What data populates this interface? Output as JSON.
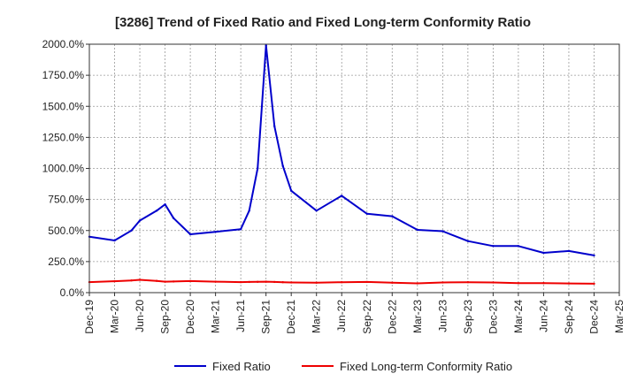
{
  "chart_data": {
    "type": "line",
    "title": "[3286]  Trend of Fixed Ratio and Fixed Long-term Conformity Ratio",
    "xlabel": "",
    "ylabel": "",
    "ylim": [
      0,
      2000
    ],
    "y_ticks": [
      0,
      250,
      500,
      750,
      1000,
      1250,
      1500,
      1750,
      2000
    ],
    "y_tick_labels": [
      "0.0%",
      "250.0%",
      "500.0%",
      "750.0%",
      "1000.0%",
      "1250.0%",
      "1500.0%",
      "1750.0%",
      "2000.0%"
    ],
    "x_tick_labels": [
      "Dec-19",
      "Mar-20",
      "Jun-20",
      "Sep-20",
      "Dec-20",
      "Mar-21",
      "Jun-21",
      "Sep-21",
      "Dec-21",
      "Mar-22",
      "Jun-22",
      "Sep-22",
      "Dec-22",
      "Mar-23",
      "Jun-23",
      "Sep-23",
      "Dec-23",
      "Mar-24",
      "Jun-24",
      "Sep-24",
      "Dec-24",
      "Mar-25"
    ],
    "grid": true,
    "legend_position": "bottom",
    "x": [
      "2019-12",
      "2020-03",
      "2020-05",
      "2020-06",
      "2020-08",
      "2020-09",
      "2020-10",
      "2020-12",
      "2021-03",
      "2021-06",
      "2021-07",
      "2021-08",
      "2021-09",
      "2021-10",
      "2021-11",
      "2021-12",
      "2022-03",
      "2022-06",
      "2022-09",
      "2022-12",
      "2023-03",
      "2023-06",
      "2023-09",
      "2023-12",
      "2024-03",
      "2024-06",
      "2024-09",
      "2024-12"
    ],
    "series": [
      {
        "name": "Fixed Ratio",
        "color": "#0000cc",
        "values": [
          450,
          420,
          500,
          580,
          660,
          710,
          600,
          470,
          490,
          510,
          660,
          1000,
          1990,
          1340,
          1020,
          820,
          660,
          780,
          635,
          615,
          505,
          495,
          415,
          375,
          375,
          320,
          335,
          300
        ]
      },
      {
        "name": "Fixed Long-term Conformity Ratio",
        "color": "#ee0000",
        "values": [
          85,
          92,
          98,
          103,
          95,
          88,
          90,
          93,
          88,
          85,
          86,
          87,
          88,
          86,
          84,
          82,
          80,
          84,
          86,
          80,
          75,
          82,
          84,
          82,
          76,
          77,
          74,
          72
        ]
      }
    ]
  }
}
